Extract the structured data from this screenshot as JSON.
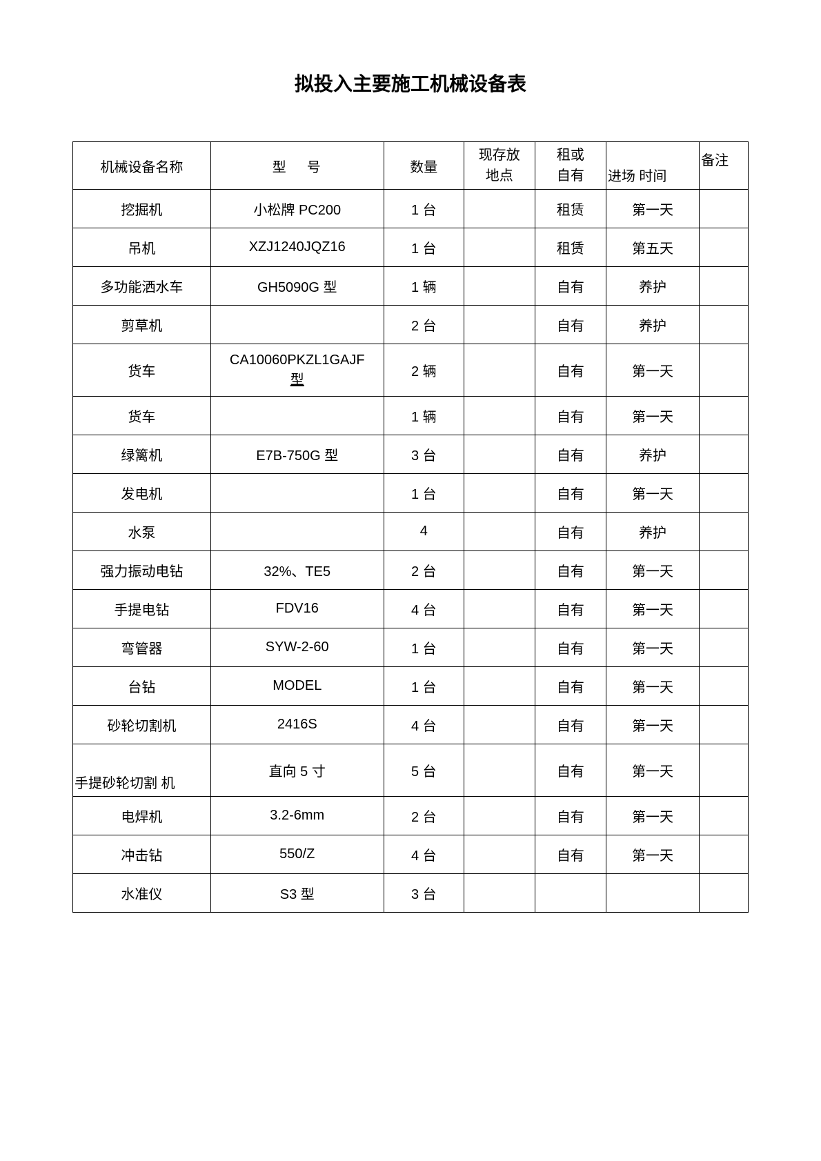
{
  "title": "拟投入主要施工机械设备表",
  "table": {
    "headers": {
      "name": "机械设备名称",
      "model": "型号",
      "qty": "数量",
      "location_line1": "现存放",
      "location_line2": "地点",
      "ownership_line1": "租或",
      "ownership_line2": "自有",
      "time": "进场 时间",
      "notes": "备注"
    },
    "rows": [
      {
        "name": "挖掘机",
        "model": "小松牌 PC200",
        "qty": "1 台",
        "location": "",
        "ownership": "租赁",
        "time": "第一天",
        "notes": ""
      },
      {
        "name": "吊机",
        "model": "XZJ1240JQZ16",
        "qty": "1 台",
        "location": "",
        "ownership": "租赁",
        "time": "第五天",
        "notes": ""
      },
      {
        "name": "多功能洒水车",
        "model": "GH5090G 型",
        "qty": "1 辆",
        "location": "",
        "ownership": "自有",
        "time": "养护",
        "notes": ""
      },
      {
        "name": "剪草机",
        "model": "",
        "qty": "2 台",
        "location": "",
        "ownership": "自有",
        "time": "养护",
        "notes": ""
      },
      {
        "name": "货车",
        "model_line1": "CA10060PKZL1GAJF",
        "model_line2": "型",
        "qty": "2 辆",
        "location": "",
        "ownership": "自有",
        "time": "第一天",
        "notes": "",
        "tall": true,
        "underline": true
      },
      {
        "name": "货车",
        "model": "",
        "qty": "1 辆",
        "location": "",
        "ownership": "自有",
        "time": "第一天",
        "notes": ""
      },
      {
        "name": "绿篱机",
        "model": "E7B-750G 型",
        "qty": "3 台",
        "location": "",
        "ownership": "自有",
        "time": "养护",
        "notes": ""
      },
      {
        "name": "发电机",
        "model": "",
        "qty": "1 台",
        "location": "",
        "ownership": "自有",
        "time": "第一天",
        "notes": ""
      },
      {
        "name": "水泵",
        "model": "",
        "qty": "4",
        "location": "",
        "ownership": "自有",
        "time": "养护",
        "notes": ""
      },
      {
        "name": "强力振动电钻",
        "model": "32%、TE5",
        "qty": "2 台",
        "location": "",
        "ownership": "自有",
        "time": "第一天",
        "notes": ""
      },
      {
        "name": "手提电钻",
        "model": "FDV16",
        "qty": "4 台",
        "location": "",
        "ownership": "自有",
        "time": "第一天",
        "notes": ""
      },
      {
        "name": "弯管器",
        "model": "SYW-2-60",
        "qty": "1 台",
        "location": "",
        "ownership": "自有",
        "time": "第一天",
        "notes": ""
      },
      {
        "name": "台钻",
        "model": "MODEL",
        "qty": "1 台",
        "location": "",
        "ownership": "自有",
        "time": "第一天",
        "notes": ""
      },
      {
        "name": "砂轮切割机",
        "model": "2416S",
        "qty": "4 台",
        "location": "",
        "ownership": "自有",
        "time": "第一天",
        "notes": ""
      },
      {
        "name": "手提砂轮切割 机",
        "model": "直向 5 寸",
        "qty": "5 台",
        "location": "",
        "ownership": "自有",
        "time": "第一天",
        "notes": "",
        "tall": true,
        "nameBottom": true
      },
      {
        "name": "电焊机",
        "model": "3.2-6mm",
        "qty": "2 台",
        "location": "",
        "ownership": "自有",
        "time": "第一天",
        "notes": ""
      },
      {
        "name": "冲击钻",
        "model": "550/Z",
        "qty": "4 台",
        "location": "",
        "ownership": "自有",
        "time": "第一天",
        "notes": ""
      },
      {
        "name": "水准仪",
        "model": "S3 型",
        "qty": "3 台",
        "location": "",
        "ownership": "",
        "time": "",
        "notes": ""
      }
    ]
  }
}
